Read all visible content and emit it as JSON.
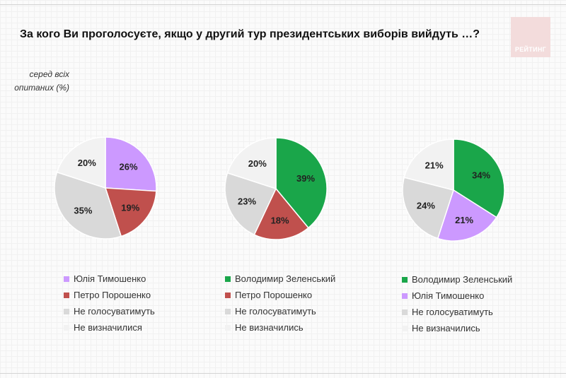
{
  "title": "За кого Ви проголосуєте, якщо у другий тур президентських виборів вийдуть …?",
  "subtitle": [
    "серед всіх",
    "опитаних (%)"
  ],
  "brand": "РЕЙТИНГ",
  "colors": {
    "Юлія Тимошенко": "#cc99ff",
    "Петро Порошенко": "#c0504d",
    "Володимир Зеленський": "#1aa64a",
    "Не голосуватимуть": "#d9d9d9",
    "Не визначилися": "#f2f2f2",
    "Не визначились": "#f2f2f2"
  },
  "chart_data": [
    {
      "type": "pie",
      "series": [
        {
          "name": "Юлія Тимошенко",
          "value": 26
        },
        {
          "name": "Петро Порошенко",
          "value": 19
        },
        {
          "name": "Не голосуватимуть",
          "value": 35
        },
        {
          "name": "Не визначилися",
          "value": 20
        }
      ],
      "labels": [
        "26%",
        "19%",
        "35%",
        "20%"
      ]
    },
    {
      "type": "pie",
      "series": [
        {
          "name": "Володимир Зеленський",
          "value": 39
        },
        {
          "name": "Петро Порошенко",
          "value": 18
        },
        {
          "name": "Не голосуватимуть",
          "value": 23
        },
        {
          "name": "Не визначились",
          "value": 20
        }
      ],
      "labels": [
        "39%",
        "18%",
        "23%",
        "20%"
      ]
    },
    {
      "type": "pie",
      "series": [
        {
          "name": "Володимир Зеленський",
          "value": 34
        },
        {
          "name": "Юлія Тимошенко",
          "value": 21
        },
        {
          "name": "Не голосуватимуть",
          "value": 24
        },
        {
          "name": "Не визначились",
          "value": 21
        }
      ],
      "labels": [
        "34%",
        "21%",
        "24%",
        "21%"
      ]
    }
  ]
}
